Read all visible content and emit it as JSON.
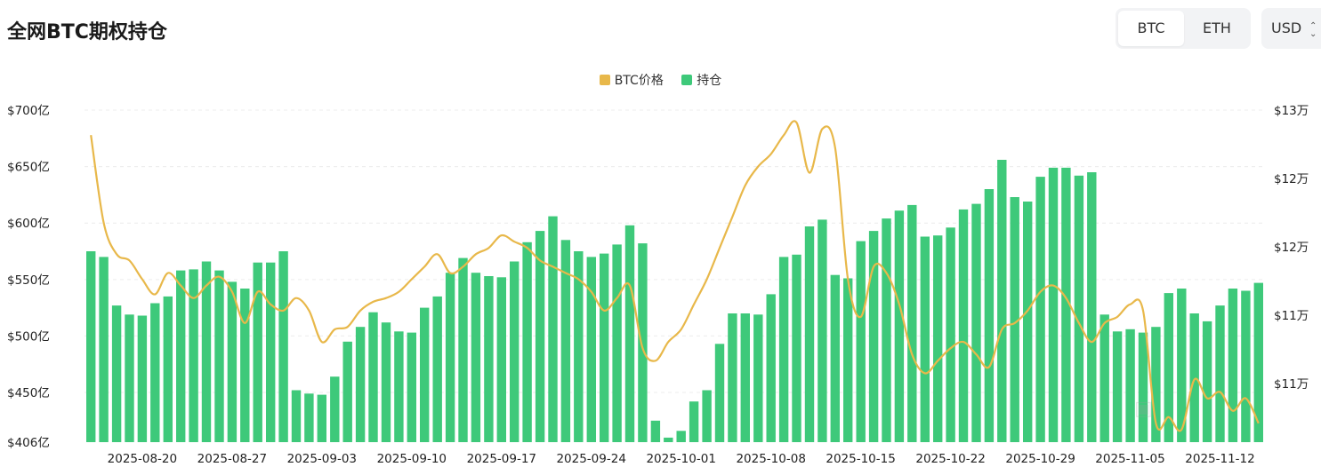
{
  "header": {
    "title": "全网BTC期权持仓"
  },
  "asset_toggle": {
    "options": [
      "BTC",
      "ETH"
    ],
    "selected": "BTC"
  },
  "currency_select": {
    "value": "USD"
  },
  "colors": {
    "price_line": "#e8b84a",
    "bars": "#3ec97a"
  },
  "chart_data": {
    "type": "bar+line",
    "legend": [
      "BTC价格",
      "持仓"
    ],
    "legend_position": "top-center",
    "left_axis": {
      "ticks": [
        "$700亿",
        "$650亿",
        "$600亿",
        "$550亿",
        "$500亿",
        "$450亿",
        "$406亿"
      ],
      "range": [
        406,
        700
      ],
      "unit": "亿"
    },
    "right_axis": {
      "ticks": [
        "$13万",
        "$12万",
        "$12万",
        "$11万",
        "$11万"
      ],
      "range_wan": [
        10.4,
        13.05
      ]
    },
    "x_tick_labels": [
      "2025-08-20",
      "2025-08-27",
      "2025-09-03",
      "2025-09-10",
      "2025-09-17",
      "2025-09-24",
      "2025-10-01",
      "2025-10-08",
      "2025-10-15",
      "2025-10-22",
      "2025-10-29",
      "2025-11-05",
      "2025-11-12"
    ],
    "series": [
      {
        "name": "持仓",
        "axis": "left",
        "type": "bar",
        "values": [
          575,
          570,
          527,
          519,
          518,
          529,
          535,
          558,
          559,
          566,
          558,
          548,
          542,
          565,
          565,
          575,
          452,
          449,
          448,
          464,
          495,
          508,
          521,
          512,
          504,
          503,
          525,
          535,
          556,
          569,
          556,
          553,
          552,
          566,
          583,
          593,
          606,
          585,
          575,
          570,
          573,
          581,
          598,
          582,
          425,
          410,
          416,
          442,
          452,
          493,
          520,
          520,
          519,
          537,
          570,
          572,
          597,
          603,
          554,
          551,
          584,
          593,
          604,
          611,
          616,
          588,
          589,
          596,
          612,
          617,
          630,
          656,
          623,
          619,
          641,
          649,
          649,
          642,
          645,
          519,
          504,
          506,
          503,
          508,
          538,
          542,
          520,
          513,
          527,
          542,
          540,
          547
        ]
      },
      {
        "name": "BTC价格",
        "axis": "right",
        "type": "line",
        "values": [
          12.85,
          12.15,
          11.9,
          11.85,
          11.7,
          11.58,
          11.75,
          11.65,
          11.55,
          11.65,
          11.72,
          11.6,
          11.35,
          11.6,
          11.5,
          11.45,
          11.55,
          11.45,
          11.2,
          11.3,
          11.32,
          11.45,
          11.52,
          11.55,
          11.6,
          11.7,
          11.8,
          11.9,
          11.75,
          11.8,
          11.9,
          11.95,
          12.05,
          12.0,
          11.95,
          11.85,
          11.8,
          11.75,
          11.7,
          11.6,
          11.45,
          11.55,
          11.65,
          11.15,
          11.05,
          11.2,
          11.3,
          11.5,
          11.7,
          11.95,
          12.2,
          12.45,
          12.6,
          12.7,
          12.85,
          12.95,
          12.55,
          12.9,
          12.75,
          11.7,
          11.4,
          11.8,
          11.75,
          11.5,
          11.1,
          10.95,
          11.05,
          11.15,
          11.2,
          11.1,
          11.0,
          11.3,
          11.35,
          11.45,
          11.6,
          11.65,
          11.55,
          11.35,
          11.2,
          11.35,
          11.4,
          11.5,
          11.45,
          10.55,
          10.6,
          10.5,
          10.9,
          10.75,
          10.8,
          10.65,
          10.75,
          10.55
        ]
      }
    ]
  }
}
